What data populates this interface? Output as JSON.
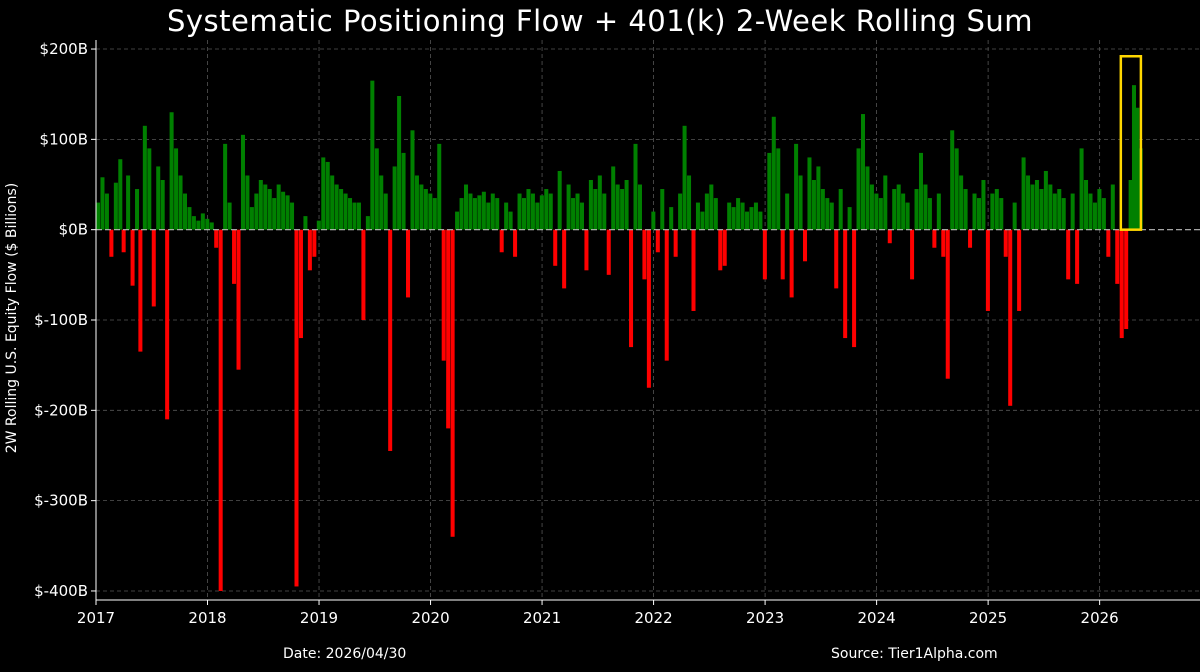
{
  "chart_data": {
    "type": "bar",
    "title": "Systematic Positioning Flow + 401(k) 2-Week Rolling Sum",
    "ylabel": "2W Rolling U.S. Equity Flow ($ Billions)",
    "xlabel": "",
    "ylim": [
      -410,
      210
    ],
    "xlim": [
      2017.0,
      2026.9
    ],
    "y_ticks": [
      200,
      100,
      0,
      -100,
      -200,
      -300,
      -400
    ],
    "y_tick_labels": [
      "$200B",
      "$100B",
      "$0B",
      "$-100B",
      "$-200B",
      "$-300B",
      "$-400B"
    ],
    "x_tick_labels": [
      "2017",
      "2018",
      "2019",
      "2020",
      "2021",
      "2022",
      "2023",
      "2024",
      "2025",
      "2026"
    ],
    "grid": true,
    "positive_color": "#008000",
    "negative_color": "#ff0000",
    "zero_line_color": "#bbbbbb",
    "highlight_color": "#ffd700",
    "highlight_box": {
      "x_start": 2026.19,
      "x_end": 2026.37,
      "y_bottom": 0,
      "y_top": 192
    },
    "series": [
      {
        "name": "",
        "points": [
          [
            2017.0,
            30
          ],
          [
            2017.04,
            58
          ],
          [
            2017.08,
            40
          ],
          [
            2017.12,
            -30
          ],
          [
            2017.16,
            52
          ],
          [
            2017.2,
            78
          ],
          [
            2017.23,
            -25
          ],
          [
            2017.27,
            60
          ],
          [
            2017.31,
            -62
          ],
          [
            2017.35,
            45
          ],
          [
            2017.38,
            -135
          ],
          [
            2017.42,
            115
          ],
          [
            2017.46,
            90
          ],
          [
            2017.5,
            -85
          ],
          [
            2017.54,
            70
          ],
          [
            2017.58,
            55
          ],
          [
            2017.62,
            -210
          ],
          [
            2017.66,
            130
          ],
          [
            2017.7,
            90
          ],
          [
            2017.74,
            60
          ],
          [
            2017.78,
            40
          ],
          [
            2017.82,
            25
          ],
          [
            2017.86,
            15
          ],
          [
            2017.9,
            10
          ],
          [
            2017.94,
            18
          ],
          [
            2017.98,
            12
          ],
          [
            2018.02,
            8
          ],
          [
            2018.06,
            -20
          ],
          [
            2018.1,
            -400
          ],
          [
            2018.14,
            95
          ],
          [
            2018.18,
            30
          ],
          [
            2018.22,
            -60
          ],
          [
            2018.26,
            -155
          ],
          [
            2018.3,
            105
          ],
          [
            2018.34,
            60
          ],
          [
            2018.38,
            25
          ],
          [
            2018.42,
            40
          ],
          [
            2018.46,
            55
          ],
          [
            2018.5,
            50
          ],
          [
            2018.54,
            45
          ],
          [
            2018.58,
            35
          ],
          [
            2018.62,
            50
          ],
          [
            2018.66,
            42
          ],
          [
            2018.7,
            38
          ],
          [
            2018.74,
            30
          ],
          [
            2018.78,
            -395
          ],
          [
            2018.82,
            -120
          ],
          [
            2018.86,
            15
          ],
          [
            2018.9,
            -45
          ],
          [
            2018.94,
            -30
          ],
          [
            2018.98,
            10
          ],
          [
            2019.02,
            80
          ],
          [
            2019.06,
            75
          ],
          [
            2019.1,
            60
          ],
          [
            2019.14,
            50
          ],
          [
            2019.18,
            45
          ],
          [
            2019.22,
            40
          ],
          [
            2019.26,
            35
          ],
          [
            2019.3,
            30
          ],
          [
            2019.34,
            30
          ],
          [
            2019.38,
            -100
          ],
          [
            2019.42,
            15
          ],
          [
            2019.46,
            165
          ],
          [
            2019.5,
            90
          ],
          [
            2019.54,
            60
          ],
          [
            2019.58,
            40
          ],
          [
            2019.62,
            -245
          ],
          [
            2019.66,
            70
          ],
          [
            2019.7,
            148
          ],
          [
            2019.74,
            85
          ],
          [
            2019.78,
            -75
          ],
          [
            2019.82,
            110
          ],
          [
            2019.86,
            60
          ],
          [
            2019.9,
            50
          ],
          [
            2019.94,
            45
          ],
          [
            2019.98,
            40
          ],
          [
            2020.02,
            35
          ],
          [
            2020.06,
            95
          ],
          [
            2020.1,
            -145
          ],
          [
            2020.14,
            -220
          ],
          [
            2020.18,
            -340
          ],
          [
            2020.22,
            20
          ],
          [
            2020.26,
            35
          ],
          [
            2020.3,
            50
          ],
          [
            2020.34,
            40
          ],
          [
            2020.38,
            35
          ],
          [
            2020.42,
            38
          ],
          [
            2020.46,
            42
          ],
          [
            2020.5,
            30
          ],
          [
            2020.54,
            40
          ],
          [
            2020.58,
            35
          ],
          [
            2020.62,
            -25
          ],
          [
            2020.66,
            30
          ],
          [
            2020.7,
            20
          ],
          [
            2020.74,
            -30
          ],
          [
            2020.78,
            40
          ],
          [
            2020.82,
            35
          ],
          [
            2020.86,
            45
          ],
          [
            2020.9,
            40
          ],
          [
            2020.94,
            30
          ],
          [
            2020.98,
            38
          ],
          [
            2021.02,
            45
          ],
          [
            2021.06,
            40
          ],
          [
            2021.1,
            -40
          ],
          [
            2021.14,
            65
          ],
          [
            2021.18,
            -65
          ],
          [
            2021.22,
            50
          ],
          [
            2021.26,
            35
          ],
          [
            2021.3,
            40
          ],
          [
            2021.34,
            30
          ],
          [
            2021.38,
            -45
          ],
          [
            2021.42,
            55
          ],
          [
            2021.46,
            45
          ],
          [
            2021.5,
            60
          ],
          [
            2021.54,
            40
          ],
          [
            2021.58,
            -50
          ],
          [
            2021.62,
            70
          ],
          [
            2021.66,
            50
          ],
          [
            2021.7,
            45
          ],
          [
            2021.74,
            55
          ],
          [
            2021.78,
            -130
          ],
          [
            2021.82,
            95
          ],
          [
            2021.86,
            50
          ],
          [
            2021.9,
            -55
          ],
          [
            2021.94,
            -175
          ],
          [
            2021.98,
            20
          ],
          [
            2022.02,
            -25
          ],
          [
            2022.06,
            45
          ],
          [
            2022.1,
            -145
          ],
          [
            2022.14,
            25
          ],
          [
            2022.18,
            -30
          ],
          [
            2022.22,
            40
          ],
          [
            2022.26,
            115
          ],
          [
            2022.3,
            60
          ],
          [
            2022.34,
            -90
          ],
          [
            2022.38,
            30
          ],
          [
            2022.42,
            20
          ],
          [
            2022.46,
            40
          ],
          [
            2022.5,
            50
          ],
          [
            2022.54,
            35
          ],
          [
            2022.58,
            -45
          ],
          [
            2022.62,
            -40
          ],
          [
            2022.66,
            30
          ],
          [
            2022.7,
            25
          ],
          [
            2022.74,
            35
          ],
          [
            2022.78,
            30
          ],
          [
            2022.82,
            20
          ],
          [
            2022.86,
            25
          ],
          [
            2022.9,
            30
          ],
          [
            2022.94,
            20
          ],
          [
            2022.98,
            -55
          ],
          [
            2023.02,
            85
          ],
          [
            2023.06,
            125
          ],
          [
            2023.1,
            90
          ],
          [
            2023.14,
            -55
          ],
          [
            2023.18,
            40
          ],
          [
            2023.22,
            -75
          ],
          [
            2023.26,
            95
          ],
          [
            2023.3,
            60
          ],
          [
            2023.34,
            -35
          ],
          [
            2023.38,
            80
          ],
          [
            2023.42,
            55
          ],
          [
            2023.46,
            70
          ],
          [
            2023.5,
            45
          ],
          [
            2023.54,
            35
          ],
          [
            2023.58,
            30
          ],
          [
            2023.62,
            -65
          ],
          [
            2023.66,
            45
          ],
          [
            2023.7,
            -120
          ],
          [
            2023.74,
            25
          ],
          [
            2023.78,
            -130
          ],
          [
            2023.82,
            90
          ],
          [
            2023.86,
            128
          ],
          [
            2023.9,
            70
          ],
          [
            2023.94,
            50
          ],
          [
            2023.98,
            40
          ],
          [
            2024.02,
            35
          ],
          [
            2024.06,
            60
          ],
          [
            2024.1,
            -15
          ],
          [
            2024.14,
            45
          ],
          [
            2024.18,
            50
          ],
          [
            2024.22,
            40
          ],
          [
            2024.26,
            30
          ],
          [
            2024.3,
            -55
          ],
          [
            2024.34,
            45
          ],
          [
            2024.38,
            85
          ],
          [
            2024.42,
            50
          ],
          [
            2024.46,
            35
          ],
          [
            2024.5,
            -20
          ],
          [
            2024.54,
            40
          ],
          [
            2024.58,
            -30
          ],
          [
            2024.62,
            -165
          ],
          [
            2024.66,
            110
          ],
          [
            2024.7,
            90
          ],
          [
            2024.74,
            60
          ],
          [
            2024.78,
            45
          ],
          [
            2024.82,
            -20
          ],
          [
            2024.86,
            40
          ],
          [
            2024.9,
            35
          ],
          [
            2024.94,
            55
          ],
          [
            2024.98,
            -90
          ],
          [
            2025.02,
            40
          ],
          [
            2025.06,
            45
          ],
          [
            2025.1,
            35
          ],
          [
            2025.14,
            -30
          ],
          [
            2025.18,
            -195
          ],
          [
            2025.22,
            30
          ],
          [
            2025.26,
            -90
          ],
          [
            2025.3,
            80
          ],
          [
            2025.34,
            60
          ],
          [
            2025.38,
            50
          ],
          [
            2025.42,
            55
          ],
          [
            2025.46,
            45
          ],
          [
            2025.5,
            65
          ],
          [
            2025.54,
            50
          ],
          [
            2025.58,
            40
          ],
          [
            2025.62,
            45
          ],
          [
            2025.66,
            35
          ],
          [
            2025.7,
            -55
          ],
          [
            2025.74,
            40
          ],
          [
            2025.78,
            -60
          ],
          [
            2025.82,
            90
          ],
          [
            2025.86,
            55
          ],
          [
            2025.9,
            40
          ],
          [
            2025.94,
            30
          ],
          [
            2025.98,
            45
          ],
          [
            2026.02,
            35
          ],
          [
            2026.06,
            -30
          ],
          [
            2026.1,
            50
          ],
          [
            2026.14,
            -60
          ],
          [
            2026.18,
            -120
          ],
          [
            2026.22,
            -110
          ],
          [
            2026.26,
            55
          ],
          [
            2026.29,
            160
          ],
          [
            2026.32,
            135
          ],
          [
            2026.35,
            90
          ]
        ]
      }
    ]
  },
  "footer": {
    "date": "Date: 2026/04/30",
    "source": "Source: Tier1Alpha.com"
  }
}
